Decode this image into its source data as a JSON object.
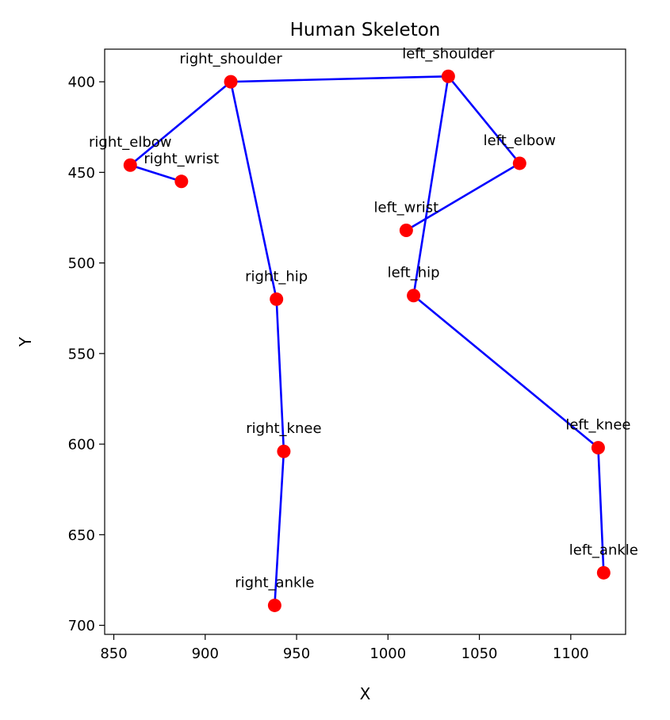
{
  "chart_data": {
    "type": "scatter",
    "title": "Human Skeleton",
    "xlabel": "X",
    "ylabel": "Y",
    "xlim": [
      845,
      1130
    ],
    "ylim": [
      705,
      382
    ],
    "y_inverted": true,
    "grid": false,
    "legend": "none",
    "x_ticks": [
      850,
      900,
      950,
      1000,
      1050,
      1100
    ],
    "y_ticks": [
      400,
      450,
      500,
      550,
      600,
      650,
      700
    ],
    "point_color": "#ff0000",
    "line_color": "#0000ff",
    "points": [
      {
        "name": "right_shoulder",
        "x": 914,
        "y": 400
      },
      {
        "name": "left_shoulder",
        "x": 1033,
        "y": 397
      },
      {
        "name": "right_elbow",
        "x": 859,
        "y": 446
      },
      {
        "name": "right_wrist",
        "x": 887,
        "y": 455
      },
      {
        "name": "left_elbow",
        "x": 1072,
        "y": 445
      },
      {
        "name": "left_wrist",
        "x": 1010,
        "y": 482
      },
      {
        "name": "right_hip",
        "x": 939,
        "y": 520
      },
      {
        "name": "left_hip",
        "x": 1014,
        "y": 518
      },
      {
        "name": "right_knee",
        "x": 943,
        "y": 604
      },
      {
        "name": "left_knee",
        "x": 1115,
        "y": 602
      },
      {
        "name": "right_ankle",
        "x": 938,
        "y": 689
      },
      {
        "name": "left_ankle",
        "x": 1118,
        "y": 671
      }
    ],
    "connections": [
      [
        "right_shoulder",
        "left_shoulder"
      ],
      [
        "right_shoulder",
        "right_elbow"
      ],
      [
        "right_elbow",
        "right_wrist"
      ],
      [
        "left_shoulder",
        "left_elbow"
      ],
      [
        "left_elbow",
        "left_wrist"
      ],
      [
        "right_shoulder",
        "right_hip"
      ],
      [
        "left_shoulder",
        "left_hip"
      ],
      [
        "right_hip",
        "right_knee"
      ],
      [
        "right_knee",
        "right_ankle"
      ],
      [
        "left_hip",
        "left_knee"
      ],
      [
        "left_knee",
        "left_ankle"
      ]
    ]
  }
}
